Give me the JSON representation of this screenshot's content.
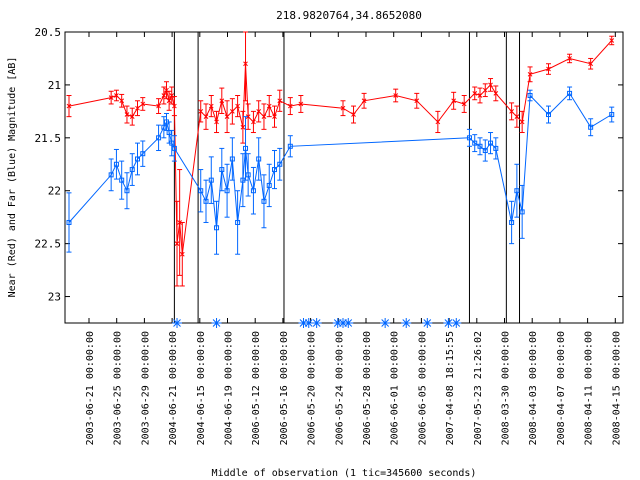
{
  "chart_data": {
    "type": "scatter",
    "title": "218.9820764,34.8652080",
    "xlabel": "Middle of observation (1 tic=345600 seconds)",
    "ylabel": "Near (Red) and Far (Blue) Magnitude [AB]",
    "ylim": [
      23.25,
      20.5
    ],
    "y_inverted": true,
    "y_ticks": [
      "20.5",
      "21",
      "21.5",
      "22",
      "22.5",
      "23"
    ],
    "x_tick_labels": [
      "2003-06-21 00:00:00",
      "2003-06-25 00:00:00",
      "2003-06-29 00:00:00",
      "2004-06-21 00:00:00",
      "2004-06-15 00:00:00",
      "2004-06-19 00:00:00",
      "2006-05-12 00:00:00",
      "2006-05-16 00:00:00",
      "2006-05-20 00:00:00",
      "2006-05-24 00:00:00",
      "2006-05-28 00:00:00",
      "2006-06-01 00:00:00",
      "2006-06-05 00:00:00",
      "2007-04-08 18:15:55",
      "2007-05-23 21:26:02",
      "2008-03-30 00:00:00",
      "2008-04-03 00:00:00",
      "2008-04-07 00:00:00",
      "2008-04-11 00:00:00",
      "2008-04-15 00:00:00"
    ],
    "x_ticks_position_index": [
      0,
      1,
      2,
      3,
      4,
      5,
      6,
      7,
      8,
      9,
      10,
      11,
      12,
      13,
      14,
      15,
      16,
      17,
      18,
      19
    ],
    "segment_breaks_at_x": [
      0.2,
      0.245,
      0.408,
      0.76,
      0.83,
      0.855
    ],
    "series": [
      {
        "name": "Near (Red)",
        "color": "#ff0000",
        "marker": "x",
        "points": [
          [
            0.0,
            21.2,
            0.1
          ],
          [
            0.08,
            21.12,
            0.06
          ],
          [
            0.09,
            21.1,
            0.05
          ],
          [
            0.1,
            21.15,
            0.06
          ],
          [
            0.11,
            21.28,
            0.08
          ],
          [
            0.12,
            21.3,
            0.08
          ],
          [
            0.13,
            21.22,
            0.07
          ],
          [
            0.14,
            21.18,
            0.06
          ],
          [
            0.17,
            21.2,
            0.07
          ],
          [
            0.18,
            21.1,
            0.08
          ],
          [
            0.185,
            21.05,
            0.08
          ],
          [
            0.19,
            21.15,
            0.09
          ],
          [
            0.195,
            21.1,
            0.08
          ],
          [
            0.2,
            21.2,
            0.09
          ],
          [
            0.205,
            22.5,
            0.4
          ],
          [
            0.21,
            22.3,
            0.5
          ],
          [
            0.215,
            22.6,
            0.3
          ],
          [
            0.25,
            21.25,
            0.1
          ],
          [
            0.26,
            21.3,
            0.12
          ],
          [
            0.27,
            21.2,
            0.1
          ],
          [
            0.28,
            21.35,
            0.1
          ],
          [
            0.29,
            21.15,
            0.12
          ],
          [
            0.3,
            21.3,
            0.15
          ],
          [
            0.31,
            21.25,
            0.12
          ],
          [
            0.32,
            21.2,
            0.1
          ],
          [
            0.33,
            21.4,
            0.15
          ],
          [
            0.335,
            20.8,
            0.35
          ],
          [
            0.34,
            21.3,
            0.12
          ],
          [
            0.35,
            21.35,
            0.1
          ],
          [
            0.36,
            21.25,
            0.1
          ],
          [
            0.37,
            21.3,
            0.12
          ],
          [
            0.38,
            21.2,
            0.1
          ],
          [
            0.39,
            21.3,
            0.1
          ],
          [
            0.4,
            21.15,
            0.1
          ],
          [
            0.42,
            21.2,
            0.08
          ],
          [
            0.44,
            21.18,
            0.08
          ],
          [
            0.52,
            21.22,
            0.07
          ],
          [
            0.54,
            21.28,
            0.08
          ],
          [
            0.56,
            21.15,
            0.07
          ],
          [
            0.62,
            21.1,
            0.06
          ],
          [
            0.66,
            21.15,
            0.07
          ],
          [
            0.7,
            21.35,
            0.1
          ],
          [
            0.73,
            21.15,
            0.08
          ],
          [
            0.75,
            21.18,
            0.08
          ],
          [
            0.77,
            21.08,
            0.06
          ],
          [
            0.78,
            21.1,
            0.07
          ],
          [
            0.79,
            21.05,
            0.06
          ],
          [
            0.8,
            21.0,
            0.06
          ],
          [
            0.81,
            21.08,
            0.07
          ],
          [
            0.84,
            21.25,
            0.08
          ],
          [
            0.85,
            21.3,
            0.1
          ],
          [
            0.86,
            21.35,
            0.1
          ],
          [
            0.875,
            20.9,
            0.07
          ],
          [
            0.91,
            20.85,
            0.05
          ],
          [
            0.95,
            20.75,
            0.04
          ],
          [
            0.99,
            20.8,
            0.05
          ],
          [
            1.03,
            20.58,
            0.04
          ]
        ]
      },
      {
        "name": "Far (Blue)",
        "color": "#0066ff",
        "marker": "square",
        "points": [
          [
            0.0,
            22.3,
            0.28
          ],
          [
            0.08,
            21.85,
            0.15
          ],
          [
            0.09,
            21.75,
            0.14
          ],
          [
            0.1,
            21.9,
            0.18
          ],
          [
            0.11,
            22.0,
            0.17
          ],
          [
            0.12,
            21.8,
            0.15
          ],
          [
            0.13,
            21.7,
            0.15
          ],
          [
            0.14,
            21.65,
            0.12
          ],
          [
            0.17,
            21.5,
            0.12
          ],
          [
            0.18,
            21.4,
            0.1
          ],
          [
            0.185,
            21.35,
            0.08
          ],
          [
            0.19,
            21.45,
            0.1
          ],
          [
            0.195,
            21.55,
            0.12
          ],
          [
            0.2,
            21.6,
            0.12
          ],
          [
            0.25,
            22.0,
            0.2
          ],
          [
            0.26,
            22.1,
            0.2
          ],
          [
            0.27,
            21.9,
            0.22
          ],
          [
            0.28,
            22.35,
            0.25
          ],
          [
            0.29,
            21.8,
            0.2
          ],
          [
            0.3,
            22.0,
            0.25
          ],
          [
            0.31,
            21.7,
            0.2
          ],
          [
            0.32,
            22.3,
            0.3
          ],
          [
            0.33,
            21.9,
            0.25
          ],
          [
            0.335,
            21.6,
            0.3
          ],
          [
            0.34,
            21.85,
            0.2
          ],
          [
            0.35,
            22.0,
            0.22
          ],
          [
            0.36,
            21.7,
            0.2
          ],
          [
            0.37,
            22.1,
            0.25
          ],
          [
            0.38,
            21.95,
            0.2
          ],
          [
            0.39,
            21.8,
            0.18
          ],
          [
            0.4,
            21.75,
            0.15
          ],
          [
            0.42,
            21.58,
            0.1
          ],
          [
            0.76,
            21.5,
            0.08
          ],
          [
            0.77,
            21.55,
            0.08
          ],
          [
            0.78,
            21.58,
            0.08
          ],
          [
            0.79,
            21.62,
            0.1
          ],
          [
            0.8,
            21.55,
            0.1
          ],
          [
            0.81,
            21.6,
            0.1
          ],
          [
            0.84,
            22.3,
            0.2
          ],
          [
            0.85,
            22.0,
            0.25
          ],
          [
            0.86,
            22.2,
            0.25
          ],
          [
            0.875,
            21.1,
            0.05
          ],
          [
            0.91,
            21.28,
            0.08
          ],
          [
            0.95,
            21.08,
            0.06
          ],
          [
            0.99,
            21.4,
            0.08
          ],
          [
            1.03,
            21.28,
            0.07
          ]
        ]
      }
    ],
    "upper_limit_markers_x": [
      0.205,
      0.28,
      0.445,
      0.455,
      0.47,
      0.51,
      0.52,
      0.53,
      0.6,
      0.64,
      0.68,
      0.72,
      0.735
    ]
  }
}
